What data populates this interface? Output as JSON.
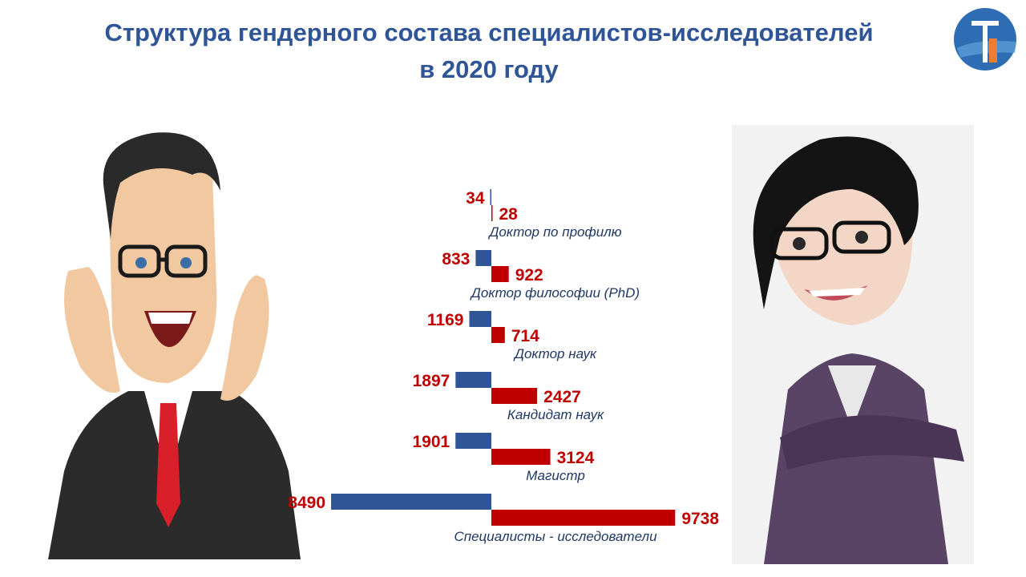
{
  "page": {
    "title_line1": "Структура гендерного состава  специалистов-исследователей",
    "title_line2": "в 2020 году"
  },
  "colors": {
    "title": "#2f5597",
    "male_bar": "#2f5597",
    "female_bar": "#c00000",
    "value_label": "#c00000",
    "category_label": "#1f3864"
  },
  "chart_data": {
    "type": "bar",
    "orientation": "horizontal",
    "categories": [
      "Доктор по профилю",
      "Доктор философии (PhD)",
      "Доктор наук",
      "Кандидат наук",
      "Магистр",
      "Специалисты - исследователи"
    ],
    "series": [
      {
        "values": [
          34,
          833,
          1169,
          1897,
          1901,
          8490
        ],
        "direction": "left",
        "color": "#2f5597"
      },
      {
        "values": [
          28,
          922,
          714,
          2427,
          3124,
          9738
        ],
        "direction": "right",
        "color": "#c00000"
      }
    ],
    "grid": false,
    "legend": "none"
  }
}
